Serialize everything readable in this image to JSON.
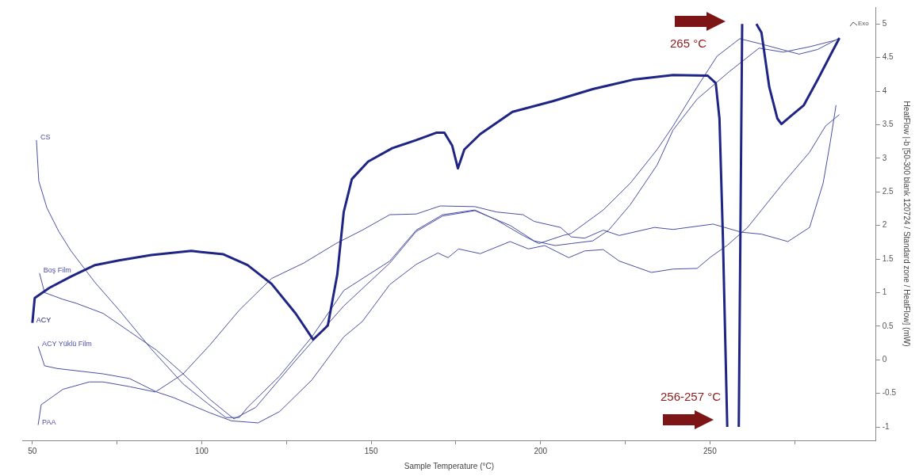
{
  "chart_data": {
    "type": "line",
    "xlabel": "Sample Temperature (°C)",
    "ylabel": "HeatFlow |-b [50-300 blank 120724 / Standard zone / HeatFlow] (mW)",
    "xlim": [
      47,
      299
    ],
    "ylim": [
      -1.2,
      5.25
    ],
    "xticks": [
      50,
      {
        "value": 75,
        "label": null
      },
      100,
      {
        "value": 125,
        "label": null
      },
      150,
      {
        "value": 175,
        "label": null
      },
      200,
      {
        "value": 225,
        "label": null
      },
      250,
      {
        "value": 275,
        "label": null
      }
    ],
    "yticks": [
      -1,
      -0.5,
      0,
      0.5,
      1,
      1.5,
      2,
      2.5,
      3,
      3.5,
      4,
      4.5,
      5
    ],
    "legend": false,
    "marker": "none",
    "line_style": "solid",
    "annotations": [
      "265 °C",
      "256-257 °C",
      "Exo"
    ],
    "series": [
      {
        "name": "ACY",
        "color": "#1f2585",
        "x": [
          50,
          50.7,
          55,
          61.4,
          68.5,
          75.6,
          85.1,
          96.9,
          106.4,
          113.5,
          120.6,
          127.7,
          132.9,
          137.2,
          140,
          141.9,
          144.3,
          149.1,
          156.2,
          163.3,
          169.2,
          171.6,
          173.9,
          175.6,
          177.5,
          182.2,
          191.7,
          203.6,
          215.4,
          227.3,
          239.1,
          249.3,
          251.7,
          252.8,
          253.8,
          255.1,
          257,
          258.5,
          259.5,
          261,
          263.7,
          265.2,
          267.5,
          269.9,
          271.1,
          273.9,
          277.7,
          281.8,
          285.8,
          288.2
        ],
        "values": [
          0.55,
          0.92,
          1.07,
          1.24,
          1.41,
          1.48,
          1.56,
          1.62,
          1.57,
          1.41,
          1.13,
          0.69,
          0.3,
          0.51,
          1.27,
          2.2,
          2.69,
          2.95,
          3.15,
          3.27,
          3.38,
          3.38,
          3.19,
          2.85,
          3.13,
          3.36,
          3.69,
          3.85,
          4.03,
          4.17,
          4.24,
          4.23,
          4.12,
          3.59,
          1.85,
          -1,
          null,
          -1,
          5,
          null,
          5,
          4.87,
          4.06,
          3.59,
          3.51,
          3.63,
          3.79,
          4.17,
          4.56,
          4.79
        ]
      },
      {
        "name": "CS",
        "color": "#4a4fa6",
        "x": [
          51.2,
          51.9,
          54.3,
          57.8,
          61.4,
          68.5,
          75.6,
          85.1,
          94.5,
          101.7,
          107.1,
          111.1,
          113.5,
          123,
          132.5,
          141.9,
          155.5,
          163.3,
          171.1,
          180.6,
          187,
          194.8,
          199.5,
          206.6,
          209,
          218.5,
          226.5,
          234.4,
          239.1,
          246.2,
          252.1,
          258.8,
          265.2,
          276.3,
          281.8,
          288.2
        ],
        "values": [
          3.27,
          2.66,
          2.26,
          1.91,
          1.62,
          1.15,
          0.74,
          0.16,
          -0.36,
          -0.65,
          -0.86,
          -0.86,
          -0.71,
          -0.24,
          0.34,
          1.03,
          1.47,
          1.93,
          2.16,
          2.23,
          2.08,
          1.85,
          1.73,
          1.85,
          1.88,
          2.23,
          2.63,
          3.13,
          3.48,
          4.06,
          4.52,
          4.78,
          4.7,
          4.55,
          4.62,
          4.79
        ]
      },
      {
        "name": "Boş Film",
        "color": "#4a4fa6",
        "x": [
          52.1,
          53.6,
          59,
          63,
          70.9,
          78.7,
          86.7,
          94.5,
          102.4,
          109.5,
          115.9,
          127.7,
          141.9,
          155.5,
          163.3,
          171.1,
          180.6,
          191,
          198.1,
          204.3,
          209,
          215.4,
          220.1,
          226.5,
          234.4,
          239.1,
          246.2,
          255.7,
          264.5,
          271.6,
          279.4,
          287.2
        ],
        "values": [
          1.29,
          1,
          0.9,
          0.84,
          0.69,
          0.42,
          0.14,
          -0.21,
          -0.59,
          -0.88,
          -0.71,
          -0.01,
          0.8,
          1.44,
          1.91,
          2.14,
          2.22,
          2,
          1.77,
          1.7,
          1.73,
          1.77,
          1.93,
          2.31,
          2.9,
          3.42,
          3.88,
          4.29,
          4.64,
          4.58,
          4.66,
          4.76
        ]
      },
      {
        "name": "ACY Yüklü Film",
        "color": "#4a4fa6",
        "x": [
          51.7,
          53.6,
          57.3,
          70.9,
          78.7,
          86.7,
          91.5,
          102.4,
          108.8,
          116.6,
          123,
          132.5,
          141.9,
          147.4,
          155.5,
          163.3,
          169.7,
          172.7,
          175.8,
          182.2,
          191,
          196.4,
          201.2,
          208.3,
          213,
          218.5,
          223.2,
          232.7,
          239.1,
          246.2,
          250.2,
          255,
          261.1,
          271.6,
          279.4,
          284.1,
          288.2
        ],
        "values": [
          0.2,
          -0.09,
          -0.13,
          -0.21,
          -0.28,
          -0.48,
          -0.56,
          -0.79,
          -0.91,
          -0.94,
          -0.77,
          -0.3,
          0.34,
          0.57,
          1.12,
          1.42,
          1.59,
          1.52,
          1.65,
          1.58,
          1.76,
          1.65,
          1.7,
          1.52,
          1.62,
          1.64,
          1.47,
          1.3,
          1.35,
          1.36,
          1.53,
          1.7,
          1.97,
          2.63,
          3.09,
          3.48,
          3.65
        ]
      },
      {
        "name": "PAA",
        "color": "#4a4fa6",
        "x": [
          51.7,
          52.6,
          59,
          66.8,
          70.9,
          78.7,
          86.3,
          94.5,
          102.4,
          111.1,
          120.6,
          130.1,
          139.6,
          147.4,
          155.5,
          163.3,
          170.4,
          180.6,
          187,
          194.8,
          198.1,
          205.9,
          209,
          213,
          218.5,
          223.2,
          233.6,
          239.1,
          250.9,
          259.2,
          265.2,
          273,
          279.4,
          283.4,
          285.5,
          287.2
        ],
        "values": [
          -0.97,
          -0.67,
          -0.44,
          -0.33,
          -0.33,
          -0.4,
          -0.48,
          -0.21,
          0.22,
          0.74,
          1.21,
          1.44,
          1.73,
          1.93,
          2.16,
          2.17,
          2.29,
          2.28,
          2.2,
          2.16,
          2.06,
          1.97,
          1.83,
          1.81,
          1.93,
          1.85,
          1.97,
          1.94,
          2.02,
          1.9,
          1.87,
          1.76,
          1.97,
          2.63,
          3.24,
          3.79
        ]
      }
    ]
  }
}
